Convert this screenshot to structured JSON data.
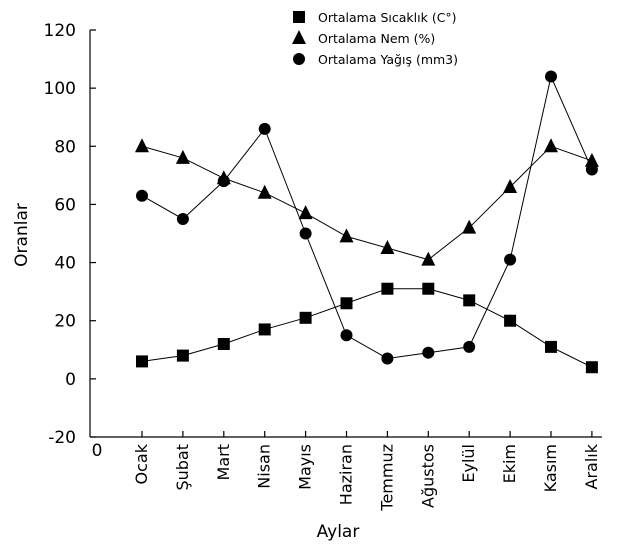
{
  "chart_data": {
    "type": "line",
    "xlabel": "Aylar",
    "ylabel": "Oranlar",
    "ylim": [
      -20,
      120
    ],
    "y_ticks": [
      "-20",
      "0",
      "20",
      "40",
      "60",
      "80",
      "100",
      "120"
    ],
    "x_origin_label": "0",
    "categories": [
      "Ocak",
      "Şubat",
      "Mart",
      "Nisan",
      "Mayıs",
      "Haziran",
      "Temmuz",
      "Ağustos",
      "Eylül",
      "Ekim",
      "Kasım",
      "Aralık"
    ],
    "grid": false,
    "legend_position": "top-right",
    "series": [
      {
        "name": "Ortalama Sıcaklık (C°)",
        "marker": "square",
        "values": [
          6,
          8,
          12,
          17,
          21,
          26,
          31,
          31,
          27,
          20,
          11,
          4
        ]
      },
      {
        "name": "Ortalama Nem (%)",
        "marker": "triangle",
        "values": [
          80,
          76,
          69,
          64,
          57,
          49,
          45,
          41,
          52,
          66,
          80,
          75
        ]
      },
      {
        "name": "Ortalama Yağış (mm3)",
        "marker": "circle",
        "values": [
          63,
          55,
          68,
          86,
          50,
          15,
          7,
          9,
          11,
          41,
          104,
          72
        ]
      }
    ]
  }
}
